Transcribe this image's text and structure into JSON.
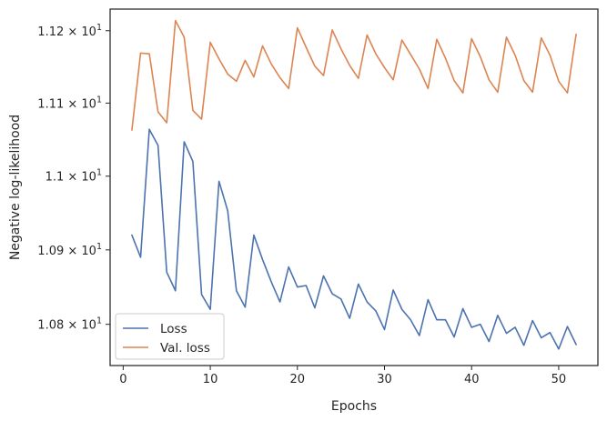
{
  "chart_data": {
    "type": "line",
    "xlabel": "Epochs",
    "ylabel": "Negative log-likelihood",
    "xlim": [
      -1.5,
      54.5
    ],
    "ylim": [
      10.745,
      11.23
    ],
    "yscale": "log",
    "grid": false,
    "legend_position": "lower-left",
    "x_ticks": [
      0,
      10,
      20,
      30,
      40,
      50
    ],
    "x_tick_labels": [
      "0",
      "10",
      "20",
      "30",
      "40",
      "50"
    ],
    "y_ticks": [
      10.8,
      10.9,
      11.0,
      11.1,
      11.2
    ],
    "y_tick_labels": [
      {
        "base": "1.08",
        "exp": "1"
      },
      {
        "base": "1.09",
        "exp": "1"
      },
      {
        "base": "1.1",
        "exp": "1"
      },
      {
        "base": "1.11",
        "exp": "1"
      },
      {
        "base": "1.12",
        "exp": "1"
      }
    ],
    "y_tick_times": "×",
    "y_tick_ten": "10",
    "x": [
      1,
      2,
      3,
      4,
      5,
      6,
      7,
      8,
      9,
      10,
      11,
      12,
      13,
      14,
      15,
      16,
      17,
      18,
      19,
      20,
      21,
      22,
      23,
      24,
      25,
      26,
      27,
      28,
      29,
      30,
      31,
      32,
      33,
      34,
      35,
      36,
      37,
      38,
      39,
      40,
      41,
      42,
      43,
      44,
      45,
      46,
      47,
      48,
      49,
      50,
      51,
      52
    ],
    "series": [
      {
        "name": "Loss",
        "color": "#4c72b0",
        "values": [
          10.92,
          10.89,
          11.064,
          11.042,
          10.87,
          10.845,
          11.047,
          11.02,
          10.84,
          10.82,
          10.993,
          10.953,
          10.845,
          10.823,
          10.92,
          10.887,
          10.857,
          10.83,
          10.877,
          10.85,
          10.852,
          10.822,
          10.865,
          10.841,
          10.834,
          10.808,
          10.854,
          10.83,
          10.818,
          10.793,
          10.846,
          10.82,
          10.806,
          10.785,
          10.833,
          10.806,
          10.806,
          10.783,
          10.821,
          10.796,
          10.8,
          10.777,
          10.812,
          10.788,
          10.796,
          10.772,
          10.805,
          10.782,
          10.789,
          10.767,
          10.797,
          10.773
        ]
      },
      {
        "name": "Val. loss",
        "color": "#dd8452",
        "values": [
          11.063,
          11.169,
          11.168,
          11.088,
          11.073,
          11.214,
          11.191,
          11.09,
          11.078,
          11.184,
          11.161,
          11.14,
          11.13,
          11.159,
          11.136,
          11.179,
          11.154,
          11.135,
          11.12,
          11.204,
          11.177,
          11.151,
          11.138,
          11.201,
          11.175,
          11.152,
          11.134,
          11.194,
          11.168,
          11.149,
          11.132,
          11.187,
          11.167,
          11.147,
          11.12,
          11.188,
          11.162,
          11.131,
          11.114,
          11.189,
          11.164,
          11.132,
          11.115,
          11.191,
          11.166,
          11.131,
          11.115,
          11.19,
          11.166,
          11.13,
          11.114,
          11.195
        ]
      }
    ]
  }
}
